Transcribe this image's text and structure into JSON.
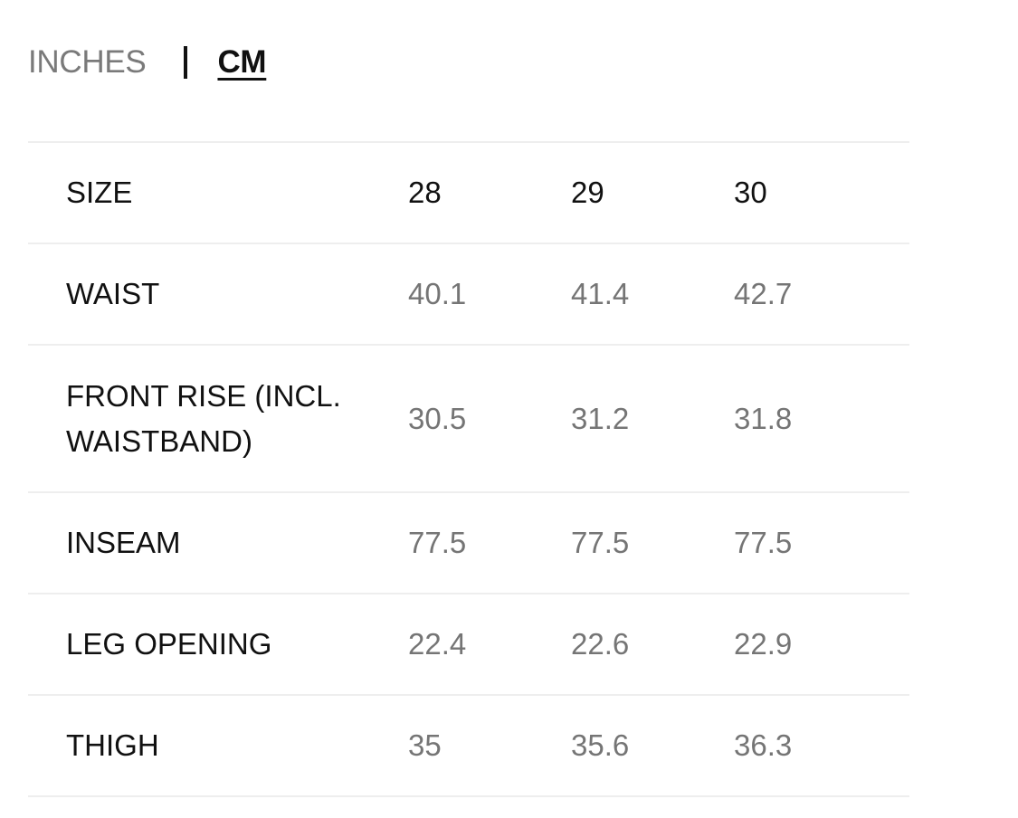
{
  "unit_toggle": {
    "inches_label": "INCHES",
    "cm_label": "CM",
    "selected": "CM"
  },
  "table": {
    "columns": [
      "SIZE",
      "28",
      "29",
      "30"
    ],
    "rows": [
      {
        "label": "WAIST",
        "values": [
          "40.1",
          "41.4",
          "42.7"
        ]
      },
      {
        "label": "FRONT RISE (INCL. WAISTBAND)",
        "label_line1": "FRONT RISE (INCL.",
        "label_line2": "WAISTBAND)",
        "values": [
          "30.5",
          "31.2",
          "31.8"
        ]
      },
      {
        "label": "INSEAM",
        "values": [
          "77.5",
          "77.5",
          "77.5"
        ]
      },
      {
        "label": "LEG OPENING",
        "values": [
          "22.4",
          "22.6",
          "22.9"
        ]
      },
      {
        "label": "THIGH",
        "values": [
          "35",
          "35.6",
          "36.3"
        ]
      }
    ]
  },
  "colors": {
    "text_primary": "#111111",
    "text_muted": "#757575",
    "divider": "#eeeeee"
  }
}
